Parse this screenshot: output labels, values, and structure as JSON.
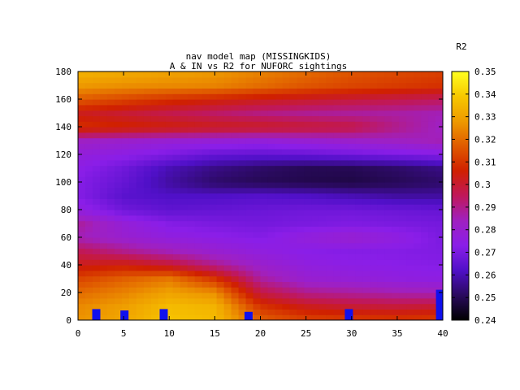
{
  "chart_data": {
    "type": "heatmap",
    "title": "nav model map (MISSINGKIDS)",
    "subtitle": "A & IN vs R2 for NUFORC sightings",
    "xlabel": "",
    "ylabel": "",
    "xlim": [
      0,
      40
    ],
    "ylim": [
      0,
      180
    ],
    "x_ticks": [
      "0",
      "5",
      "10",
      "15",
      "20",
      "25",
      "30",
      "35",
      "40"
    ],
    "y_ticks": [
      "0",
      "20",
      "40",
      "60",
      "80",
      "100",
      "120",
      "140",
      "160",
      "180"
    ],
    "colorbar": {
      "label": "R2",
      "range": [
        0.24,
        0.35
      ],
      "ticks": [
        "0.24",
        "0.25",
        "0.26",
        "0.27",
        "0.28",
        "0.29",
        "0.3",
        "0.31",
        "0.32",
        "0.33",
        "0.34",
        "0.35"
      ],
      "palette": [
        "#000000",
        "#2a0a5e",
        "#5010c8",
        "#8a1ee8",
        "#a020c0",
        "#c0185a",
        "#d02000",
        "#e05a00",
        "#ee9a00",
        "#f7c800",
        "#ffff20"
      ]
    },
    "y_values": [
      0,
      10,
      20,
      30,
      40,
      50,
      60,
      70,
      80,
      90,
      100,
      110,
      120,
      130,
      140,
      150,
      160,
      170,
      180
    ],
    "x_values": [
      0,
      5,
      10,
      15,
      20,
      25,
      30,
      35,
      40
    ],
    "z_grid": [
      [
        0.327,
        0.331,
        0.338,
        0.336,
        0.318,
        0.313,
        0.312,
        0.311,
        0.312
      ],
      [
        0.325,
        0.329,
        0.336,
        0.334,
        0.31,
        0.303,
        0.3,
        0.299,
        0.3
      ],
      [
        0.32,
        0.324,
        0.33,
        0.326,
        0.298,
        0.29,
        0.288,
        0.286,
        0.285
      ],
      [
        0.313,
        0.318,
        0.322,
        0.31,
        0.288,
        0.28,
        0.278,
        0.276,
        0.275
      ],
      [
        0.303,
        0.305,
        0.3,
        0.29,
        0.281,
        0.276,
        0.274,
        0.273,
        0.272
      ],
      [
        0.296,
        0.29,
        0.285,
        0.28,
        0.276,
        0.273,
        0.272,
        0.272,
        0.271
      ],
      [
        0.285,
        0.28,
        0.276,
        0.274,
        0.272,
        0.277,
        0.28,
        0.276,
        0.27
      ],
      [
        0.288,
        0.278,
        0.272,
        0.27,
        0.269,
        0.27,
        0.271,
        0.27,
        0.269
      ],
      [
        0.276,
        0.268,
        0.265,
        0.266,
        0.267,
        0.268,
        0.268,
        0.267,
        0.266
      ],
      [
        0.272,
        0.264,
        0.262,
        0.262,
        0.263,
        0.262,
        0.26,
        0.258,
        0.258
      ],
      [
        0.272,
        0.266,
        0.258,
        0.252,
        0.25,
        0.249,
        0.248,
        0.25,
        0.252
      ],
      [
        0.274,
        0.268,
        0.26,
        0.255,
        0.252,
        0.25,
        0.25,
        0.252,
        0.255
      ],
      [
        0.277,
        0.274,
        0.27,
        0.266,
        0.265,
        0.266,
        0.268,
        0.27,
        0.272
      ],
      [
        0.283,
        0.281,
        0.279,
        0.278,
        0.277,
        0.279,
        0.281,
        0.283,
        0.285
      ],
      [
        0.309,
        0.307,
        0.305,
        0.303,
        0.302,
        0.3,
        0.298,
        0.29,
        0.283
      ],
      [
        0.303,
        0.3,
        0.297,
        0.294,
        0.291,
        0.289,
        0.288,
        0.287,
        0.285
      ],
      [
        0.317,
        0.313,
        0.309,
        0.306,
        0.303,
        0.301,
        0.299,
        0.297,
        0.295
      ],
      [
        0.328,
        0.326,
        0.325,
        0.324,
        0.32,
        0.316,
        0.313,
        0.311,
        0.309
      ],
      [
        0.334,
        0.332,
        0.33,
        0.328,
        0.324,
        0.32,
        0.316,
        0.314,
        0.312
      ]
    ],
    "markers": [
      {
        "x": 2.0,
        "y0": 0,
        "y1": 8,
        "color": "#1010ee"
      },
      {
        "x": 5.1,
        "y0": 0,
        "y1": 7,
        "color": "#1010ee"
      },
      {
        "x": 9.4,
        "y0": 0,
        "y1": 8,
        "color": "#1010ee"
      },
      {
        "x": 18.7,
        "y0": 0,
        "y1": 6,
        "color": "#1010ee"
      },
      {
        "x": 29.7,
        "y0": 0,
        "y1": 8,
        "color": "#1010ee"
      },
      {
        "x": 39.7,
        "y0": 0,
        "y1": 22,
        "color": "#1010ee"
      }
    ],
    "grid": false,
    "legend": "none"
  }
}
